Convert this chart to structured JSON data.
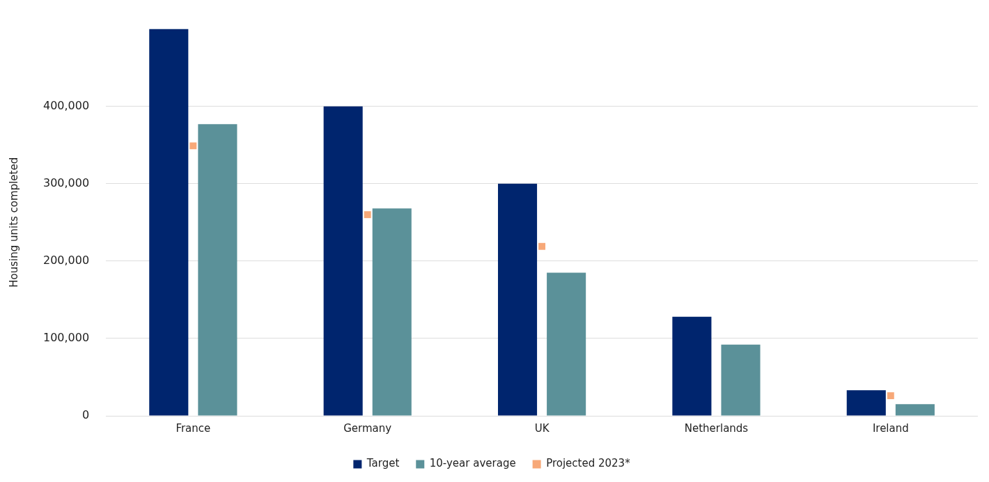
{
  "chart_data": {
    "type": "bar",
    "ylabel": "Housing units completed",
    "categories": [
      "France",
      "Germany",
      "UK",
      "Netherlands",
      "Ireland"
    ],
    "series": [
      {
        "name": "Target",
        "color": "#00256e",
        "values": [
          500000,
          400000,
          300000,
          128000,
          33000
        ]
      },
      {
        "name": "10-year average",
        "color": "#5b9199",
        "values": [
          377000,
          268000,
          185000,
          92000,
          15000
        ]
      },
      {
        "name": "Projected 2023*",
        "type": "scatter",
        "marker": "square",
        "color": "#f7a878",
        "x": [
          "France",
          "Germany",
          "UK",
          "Netherlands",
          "Ireland"
        ],
        "values": [
          349000,
          260000,
          219000,
          null,
          26000
        ]
      }
    ],
    "ylim": [
      0,
      500000
    ],
    "yticks": [
      0,
      {
        "value": 100000,
        "label": "100,000"
      },
      {
        "value": 200000,
        "label": "200,000"
      },
      {
        "value": 300000,
        "label": "300,000"
      },
      {
        "value": 400000,
        "label": "400,000"
      }
    ],
    "grid": "y",
    "legend": "bottom"
  }
}
